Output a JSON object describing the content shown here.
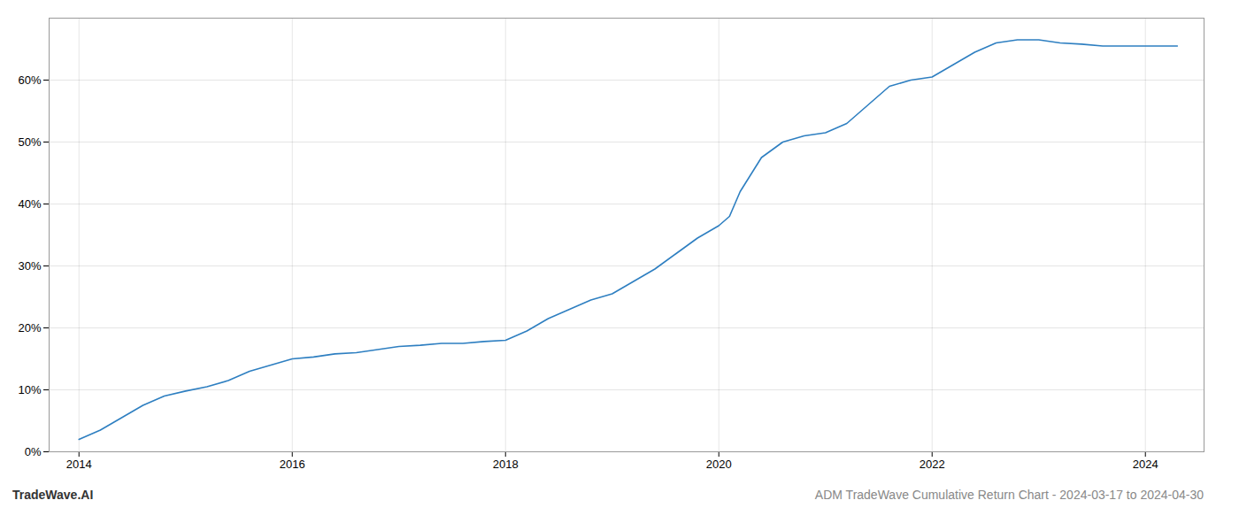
{
  "chart_data": {
    "type": "line",
    "title": "ADM TradeWave Cumulative Return Chart - 2024-03-17 to 2024-04-30",
    "annotations": [
      "TradeWave.AI"
    ],
    "x": [
      2014.0,
      2014.2,
      2014.4,
      2014.6,
      2014.8,
      2015.0,
      2015.2,
      2015.4,
      2015.6,
      2015.8,
      2016.0,
      2016.2,
      2016.4,
      2016.6,
      2016.8,
      2017.0,
      2017.2,
      2017.4,
      2017.6,
      2017.8,
      2018.0,
      2018.2,
      2018.4,
      2018.6,
      2018.8,
      2019.0,
      2019.2,
      2019.4,
      2019.6,
      2019.8,
      2020.0,
      2020.1,
      2020.2,
      2020.4,
      2020.6,
      2020.8,
      2021.0,
      2021.2,
      2021.4,
      2021.6,
      2021.8,
      2022.0,
      2022.2,
      2022.4,
      2022.6,
      2022.8,
      2023.0,
      2023.2,
      2023.4,
      2023.6,
      2023.8,
      2024.0,
      2024.3
    ],
    "values": [
      2.0,
      3.5,
      5.5,
      7.5,
      9.0,
      9.8,
      10.5,
      11.5,
      13.0,
      14.0,
      15.0,
      15.3,
      15.8,
      16.0,
      16.5,
      17.0,
      17.2,
      17.5,
      17.5,
      17.8,
      18.0,
      19.5,
      21.5,
      23.0,
      24.5,
      25.5,
      27.5,
      29.5,
      32.0,
      34.5,
      36.5,
      38.0,
      42.0,
      47.5,
      50.0,
      51.0,
      51.5,
      53.0,
      56.0,
      59.0,
      60.0,
      60.5,
      62.5,
      64.5,
      66.0,
      66.5,
      66.5,
      66.0,
      65.8,
      65.5,
      65.5,
      65.5,
      65.5
    ],
    "color": "#2e7fc1",
    "xlim": [
      2013.72,
      2024.55
    ],
    "xticks": [
      2014,
      2016,
      2018,
      2020,
      2022,
      2024
    ],
    "ylim": [
      0,
      70
    ],
    "yticks": [
      {
        "value": 0,
        "label": "0%"
      },
      {
        "value": 10,
        "label": "10%"
      },
      {
        "value": 20,
        "label": "20%"
      },
      {
        "value": 30,
        "label": "30%"
      },
      {
        "value": 40,
        "label": "40%"
      },
      {
        "value": 50,
        "label": "50%"
      },
      {
        "value": 60,
        "label": "60%"
      }
    ],
    "grid": true
  }
}
